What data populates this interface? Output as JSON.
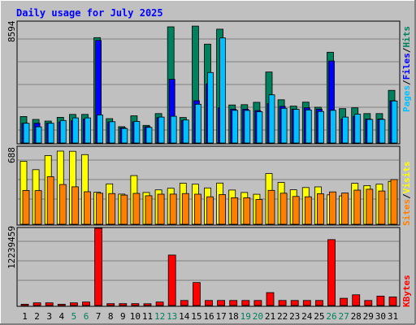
{
  "title": "Daily usage for July 2025",
  "colors": {
    "background": "#c0c0c0",
    "title": "#0000ff",
    "hits": "#00805c",
    "files": "#0000ff",
    "pages": "#00c0ff",
    "visits": "#ffff00",
    "sites": "#ff8000",
    "kbytes": "#ff0000",
    "weekend_day_label": "#00805c",
    "weekday_day_label": "#000000"
  },
  "legend_top": [
    {
      "text": "Hits",
      "color": "#00805c"
    },
    {
      "text": "/",
      "color": "#000000"
    },
    {
      "text": "Files",
      "color": "#0000ff"
    },
    {
      "text": "/",
      "color": "#000000"
    },
    {
      "text": "Pages",
      "color": "#00c0ff"
    }
  ],
  "legend_mid": [
    {
      "text": "Visits",
      "color": "#ffff00"
    },
    {
      "text": "/",
      "color": "#000000"
    },
    {
      "text": "Sites",
      "color": "#ff8000"
    }
  ],
  "legend_bot": [
    {
      "text": "KBytes",
      "color": "#ff0000"
    }
  ],
  "chart_data": [
    {
      "type": "bar",
      "title": "Daily usage for July 2025",
      "ymax_label": "8594",
      "ylim": [
        0,
        8594
      ],
      "categories": [
        "1",
        "2",
        "3",
        "4",
        "5",
        "6",
        "7",
        "8",
        "9",
        "10",
        "11",
        "12",
        "13",
        "14",
        "15",
        "16",
        "17",
        "18",
        "19",
        "20",
        "21",
        "22",
        "23",
        "24",
        "25",
        "26",
        "27",
        "28",
        "29",
        "30",
        "31"
      ],
      "weekend_days": [
        "5",
        "6",
        "12",
        "13",
        "19",
        "20",
        "26",
        "27"
      ],
      "series": [
        {
          "name": "Hits",
          "values": [
            1880,
            1670,
            1560,
            1820,
            2030,
            2030,
            7480,
            1730,
            1160,
            1930,
            1250,
            2090,
            8250,
            1810,
            8300,
            7020,
            8080,
            2700,
            2720,
            2890,
            5040,
            3070,
            2620,
            2900,
            2540,
            6440,
            2440,
            2500,
            2090,
            2090,
            3740
          ]
        },
        {
          "name": "Files",
          "values": [
            1400,
            1400,
            1400,
            1500,
            1600,
            1700,
            7280,
            1500,
            1080,
            1500,
            1160,
            1800,
            4520,
            1600,
            3000,
            4200,
            2500,
            2400,
            2400,
            2300,
            2800,
            2600,
            2400,
            2500,
            2400,
            5820,
            1700,
            1900,
            1700,
            1700,
            3000
          ]
        },
        {
          "name": "Pages",
          "values": [
            1400,
            1150,
            1400,
            1600,
            1780,
            1780,
            1990,
            1510,
            1030,
            1530,
            1110,
            1840,
            1900,
            1630,
            2750,
            5000,
            7460,
            2320,
            2310,
            2220,
            3420,
            2460,
            2390,
            2350,
            2240,
            2320,
            1840,
            2050,
            1670,
            1670,
            2980
          ]
        }
      ]
    },
    {
      "type": "bar",
      "ymax_label": "688",
      "ylim": [
        0,
        688
      ],
      "categories": [
        "1",
        "2",
        "3",
        "4",
        "5",
        "6",
        "7",
        "8",
        "9",
        "10",
        "11",
        "12",
        "13",
        "14",
        "15",
        "16",
        "17",
        "18",
        "19",
        "20",
        "21",
        "22",
        "23",
        "24",
        "25",
        "26",
        "27",
        "28",
        "29",
        "30",
        "31"
      ],
      "series": [
        {
          "name": "Visits",
          "values": [
            562,
            487,
            612,
            652,
            650,
            621,
            285,
            360,
            269,
            434,
            283,
            306,
            321,
            366,
            357,
            324,
            367,
            305,
            283,
            267,
            452,
            373,
            307,
            327,
            333,
            262,
            253,
            365,
            345,
            357,
            382
          ]
        },
        {
          "name": "Sites",
          "values": [
            301,
            300,
            424,
            354,
            334,
            290,
            277,
            274,
            260,
            275,
            254,
            268,
            269,
            274,
            268,
            245,
            264,
            236,
            236,
            221,
            302,
            277,
            248,
            245,
            272,
            288,
            278,
            304,
            312,
            296,
            398
          ]
        }
      ]
    },
    {
      "type": "bar",
      "ymax_label": "12239459",
      "ylim": [
        0,
        12239459
      ],
      "categories": [
        "1",
        "2",
        "3",
        "4",
        "5",
        "6",
        "7",
        "8",
        "9",
        "10",
        "11",
        "12",
        "13",
        "14",
        "15",
        "16",
        "17",
        "18",
        "19",
        "20",
        "21",
        "22",
        "23",
        "24",
        "25",
        "26",
        "27",
        "28",
        "29",
        "30",
        "31"
      ],
      "series": [
        {
          "name": "KBytes",
          "values": [
            210000,
            420000,
            420000,
            210000,
            420000,
            550000,
            12239459,
            290000,
            300000,
            290000,
            280000,
            550000,
            8000000,
            800000,
            3650000,
            800000,
            800000,
            800000,
            800000,
            800000,
            2050000,
            800000,
            800000,
            800000,
            800000,
            10450000,
            1150000,
            1700000,
            800000,
            1500000,
            1350000
          ]
        }
      ]
    }
  ]
}
